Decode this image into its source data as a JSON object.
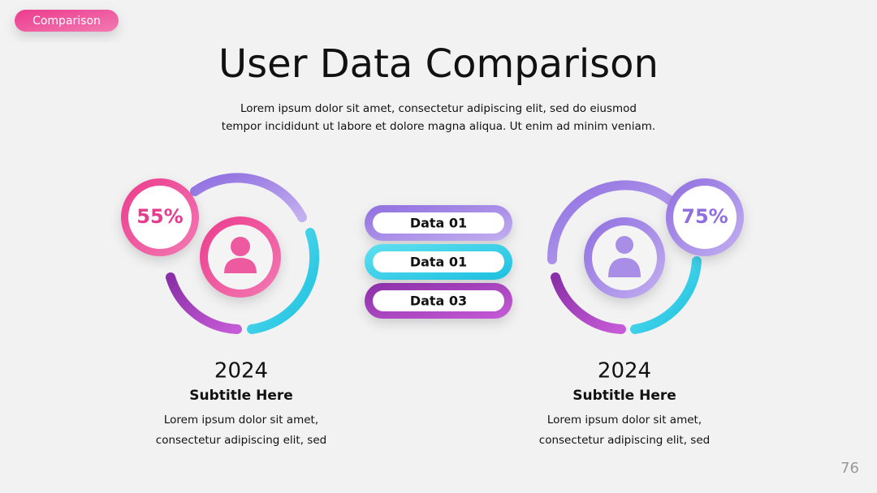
{
  "tag": "Comparison",
  "title": "User Data Comparison",
  "intro": [
    "Lorem ipsum dolor sit amet, consectetur adipiscing elit, sed do eiusmod",
    "tempor incididunt ut labore et dolore magna aliqua. Ut enim ad minim veniam."
  ],
  "left": {
    "percent": "55%",
    "year": "2024",
    "subtitle": "Subtitle Here",
    "text": [
      "Lorem ipsum dolor sit amet,",
      "consectetur adipiscing elit, sed"
    ]
  },
  "center": {
    "items": [
      "Data 01",
      "Data 01",
      "Data 03"
    ]
  },
  "right": {
    "percent": "75%",
    "year": "2024",
    "subtitle": "Subtitle Here",
    "text": [
      "Lorem ipsum dolor sit amet,",
      "consectetur adipiscing elit, sed"
    ]
  },
  "page_number": "76"
}
